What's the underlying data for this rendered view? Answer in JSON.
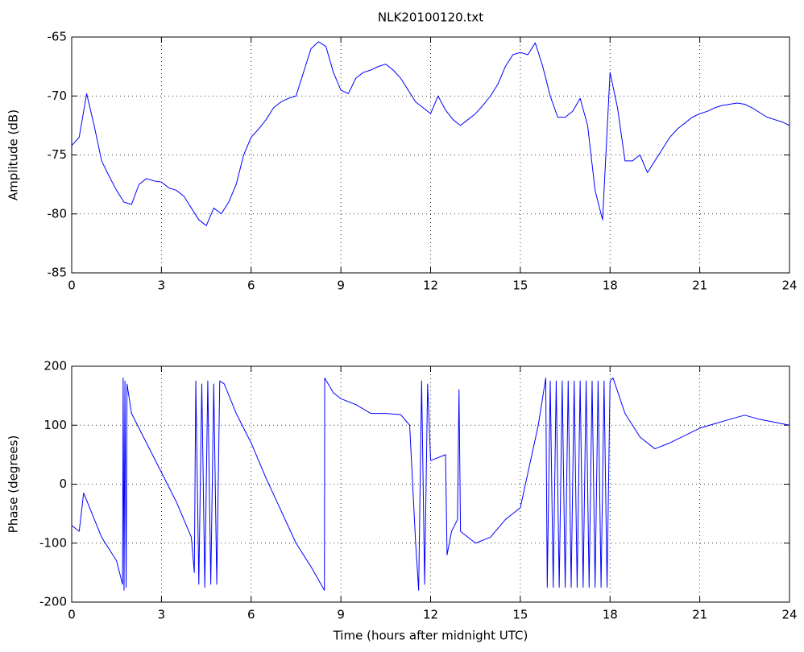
{
  "chart_data": [
    {
      "type": "line",
      "title": "NLK20100120.txt",
      "y_label": "Amplitude (dB)",
      "grid": true,
      "xlim": [
        0,
        24
      ],
      "xticks": [
        0,
        3,
        6,
        9,
        12,
        15,
        18,
        21,
        24
      ],
      "ylim": [
        -85,
        -65
      ],
      "yticks": [
        -85,
        -80,
        -75,
        -70,
        -65
      ],
      "x": [
        0,
        0.25,
        0.5,
        0.75,
        1,
        1.25,
        1.5,
        1.75,
        2,
        2.25,
        2.5,
        2.75,
        3,
        3.25,
        3.5,
        3.75,
        4,
        4.25,
        4.5,
        4.75,
        5,
        5.25,
        5.5,
        5.75,
        6,
        6.25,
        6.5,
        6.75,
        7,
        7.25,
        7.5,
        7.75,
        8,
        8.25,
        8.5,
        8.75,
        9,
        9.25,
        9.5,
        9.75,
        10,
        10.25,
        10.5,
        10.75,
        11,
        11.25,
        11.5,
        11.75,
        12,
        12.25,
        12.5,
        12.75,
        13,
        13.25,
        13.5,
        13.75,
        14,
        14.25,
        14.5,
        14.75,
        15,
        15.25,
        15.5,
        15.75,
        16,
        16.25,
        16.5,
        16.75,
        17,
        17.25,
        17.5,
        17.75,
        18,
        18.25,
        18.5,
        18.75,
        19,
        19.25,
        19.5,
        19.75,
        20,
        20.25,
        20.5,
        20.75,
        21,
        21.25,
        21.5,
        21.75,
        22,
        22.25,
        22.5,
        22.75,
        23,
        23.25,
        23.5,
        23.75,
        24
      ],
      "series": [
        {
          "color": "#0000ff",
          "values": [
            -74.2,
            -73.5,
            -69.8,
            -72.5,
            -75.5,
            -76.8,
            -78,
            -79,
            -79.2,
            -77.5,
            -77,
            -77.2,
            -77.3,
            -77.8,
            -78,
            -78.5,
            -79.5,
            -80.5,
            -81,
            -79.5,
            -80,
            -79,
            -77.5,
            -75,
            -73.5,
            -72.8,
            -72,
            -71,
            -70.5,
            -70.2,
            -70,
            -68,
            -66,
            -65.4,
            -65.8,
            -68,
            -69.5,
            -69.8,
            -68.5,
            -68,
            -67.8,
            -67.5,
            -67.3,
            -67.8,
            -68.5,
            -69.5,
            -70.5,
            -71,
            -71.5,
            -70,
            -71.2,
            -72,
            -72.5,
            -72,
            -71.5,
            -70.8,
            -70,
            -69,
            -67.5,
            -66.5,
            -66.3,
            -66.5,
            -65.5,
            -67.5,
            -70,
            -71.8,
            -71.8,
            -71.3,
            -70.2,
            -72.5,
            -78,
            -80.5,
            -68,
            -71,
            -75.5,
            -75.5,
            -75,
            -76.5,
            -75.5,
            -74.5,
            -73.5,
            -72.8,
            -72.3,
            -71.8,
            -71.5,
            -71.3,
            -71,
            -70.8,
            -70.7,
            -70.6,
            -70.7,
            -71,
            -71.4,
            -71.8,
            -72,
            -72.2,
            -72.5
          ]
        }
      ]
    },
    {
      "type": "line",
      "x_label": "Time (hours after midnight UTC)",
      "y_label": "Phase (degrees)",
      "grid": true,
      "xlim": [
        0,
        24
      ],
      "xticks": [
        0,
        3,
        6,
        9,
        12,
        15,
        18,
        21,
        24
      ],
      "ylim": [
        -200,
        200
      ],
      "yticks": [
        -200,
        -100,
        0,
        100,
        200
      ],
      "x": [
        0,
        0.25,
        0.4,
        0.6,
        1,
        1.5,
        1.7,
        1.72,
        1.75,
        1.78,
        1.82,
        1.85,
        2,
        2.5,
        3,
        3.5,
        4,
        4.1,
        4.15,
        4.25,
        4.35,
        4.45,
        4.55,
        4.65,
        4.75,
        4.85,
        4.95,
        5.1,
        5.5,
        6,
        6.5,
        7,
        7.5,
        8,
        8.45,
        8.46,
        8.75,
        9,
        9.5,
        10,
        10.5,
        11,
        11.3,
        11.5,
        11.6,
        11.7,
        11.8,
        11.9,
        12,
        12.5,
        12.55,
        12.7,
        12.9,
        12.95,
        13,
        13.5,
        14,
        14.5,
        15,
        15.3,
        15.6,
        15.85,
        15.9,
        16,
        16.1,
        16.2,
        16.3,
        16.4,
        16.5,
        16.6,
        16.7,
        16.8,
        16.9,
        17,
        17.1,
        17.2,
        17.3,
        17.4,
        17.5,
        17.6,
        17.7,
        17.8,
        17.9,
        18,
        18.1,
        18.5,
        19,
        19.5,
        20,
        21,
        22,
        22.5,
        23,
        24
      ],
      "series": [
        {
          "color": "#0000ff",
          "values": [
            -70,
            -80,
            -15,
            -40,
            -90,
            -130,
            -170,
            180,
            -180,
            175,
            -175,
            170,
            120,
            70,
            20,
            -30,
            -90,
            -150,
            175,
            -170,
            170,
            -175,
            175,
            -170,
            170,
            -170,
            175,
            170,
            120,
            70,
            10,
            -45,
            -100,
            -140,
            -180,
            180,
            155,
            145,
            135,
            120,
            120,
            118,
            100,
            -100,
            -180,
            175,
            -170,
            170,
            40,
            50,
            -120,
            -80,
            -60,
            160,
            -80,
            -100,
            -90,
            -60,
            -40,
            30,
            100,
            180,
            -175,
            175,
            -175,
            175,
            -175,
            175,
            -175,
            175,
            -175,
            175,
            -175,
            175,
            -175,
            175,
            -175,
            175,
            -175,
            175,
            -175,
            175,
            -175,
            175,
            180,
            120,
            80,
            60,
            70,
            95,
            110,
            117,
            110,
            100
          ]
        }
      ]
    }
  ]
}
